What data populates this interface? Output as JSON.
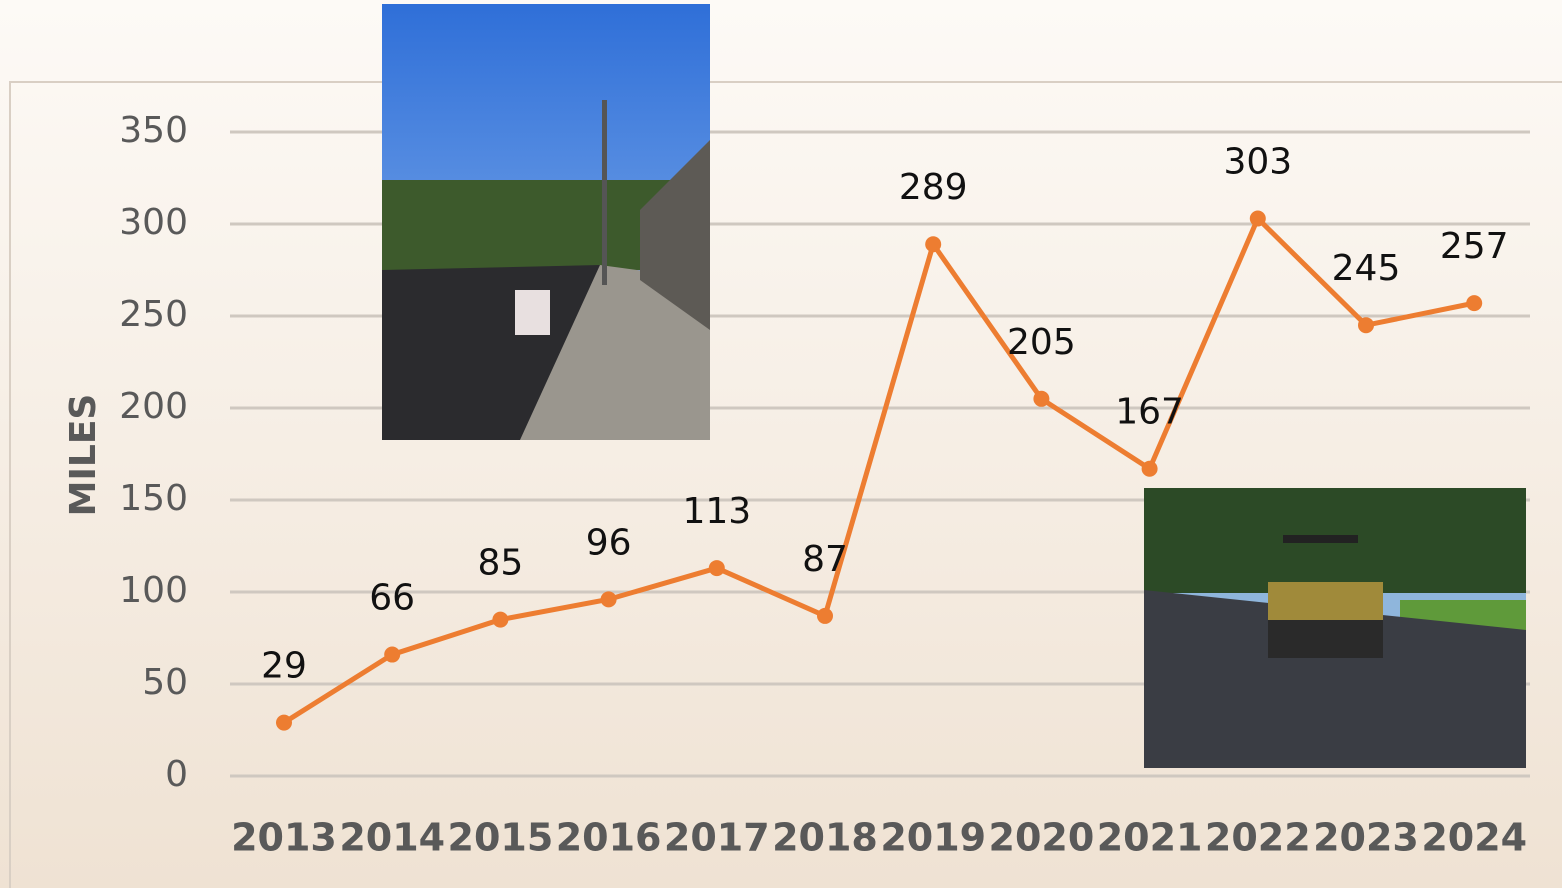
{
  "chart_data": {
    "type": "line",
    "y_axis_label": "MILES",
    "categories": [
      "2013",
      "2014",
      "2015",
      "2016",
      "2017",
      "2018",
      "2019",
      "2020",
      "2021",
      "2022",
      "2023",
      "2024"
    ],
    "series": [
      {
        "name": "Miles",
        "color": "#ed7d31",
        "values": [
          29,
          66,
          85,
          96,
          113,
          87,
          289,
          205,
          167,
          303,
          245,
          257
        ]
      }
    ],
    "ylim": [
      0,
      350
    ],
    "yticks": [
      0,
      50,
      100,
      150,
      200,
      250,
      300,
      350
    ],
    "grid": true
  }
}
